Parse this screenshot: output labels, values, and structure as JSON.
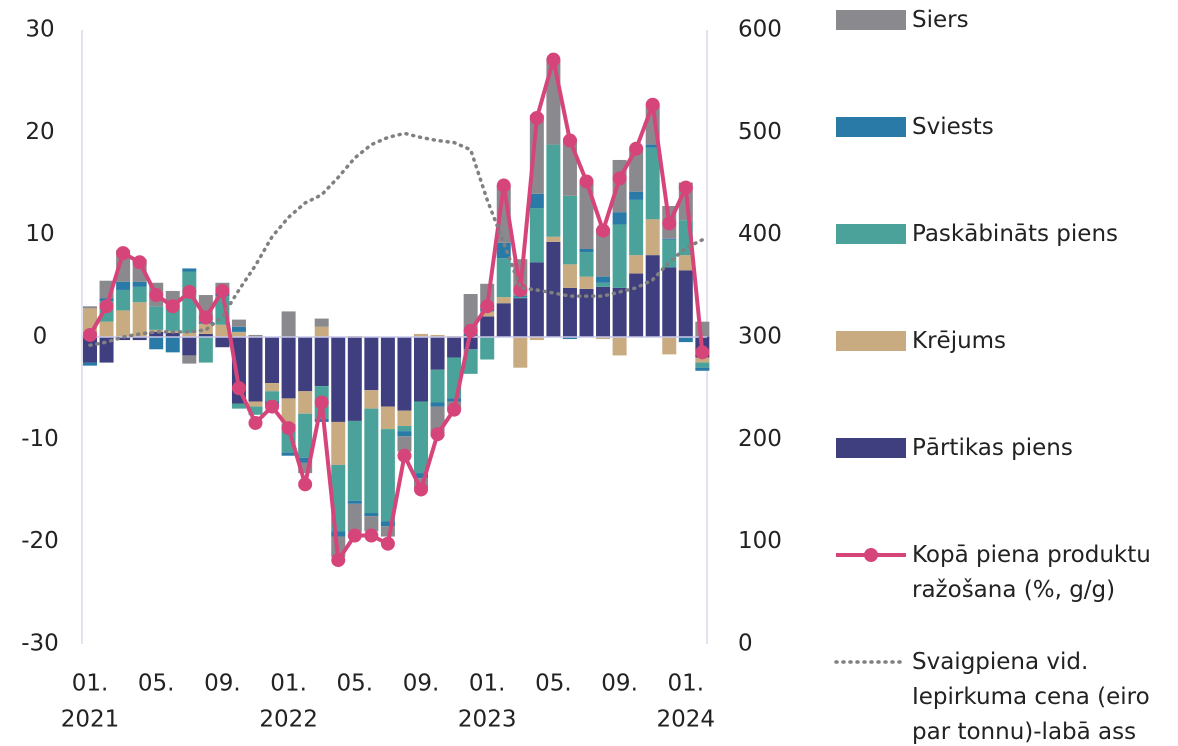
{
  "chart_data": {
    "type": "bar",
    "categories": [
      "01.",
      null,
      null,
      null,
      "05.",
      null,
      null,
      null,
      "09.",
      null,
      null,
      null,
      "01.",
      null,
      null,
      null,
      "05.",
      null,
      null,
      null,
      "09.",
      null,
      null,
      null,
      "01.",
      null,
      null,
      null,
      "05.",
      null,
      null,
      null,
      "09.",
      null,
      null,
      null,
      "01.",
      null
    ],
    "year_labels": [
      "2021",
      "2022",
      "2023",
      "2024"
    ],
    "ylim": [
      -30,
      30
    ],
    "yticks": [
      -30,
      -20,
      -10,
      0,
      10,
      20,
      30
    ],
    "y2lim": [
      0,
      600
    ],
    "y2ticks": [
      0,
      100,
      200,
      300,
      400,
      500,
      600
    ],
    "series": [
      {
        "name": "Pārtikas piens",
        "color": "#3f3f7f",
        "type": "bar",
        "values": [
          -2.5,
          -2.5,
          -0.3,
          -0.3,
          0.5,
          0.4,
          -1.8,
          0.3,
          -1.0,
          -6.5,
          -6.3,
          -4.5,
          -6.0,
          -5.3,
          -4.8,
          -8.3,
          -8.2,
          -5.2,
          -6.8,
          -7.2,
          -6.3,
          -3.2,
          -2.0,
          -1.2,
          2.0,
          3.3,
          3.8,
          7.3,
          9.3,
          4.8,
          4.7,
          4.9,
          4.8,
          6.2,
          8.0,
          6.8,
          6.5,
          -2.0
        ]
      },
      {
        "name": "Krējums",
        "color": "#c9ab82",
        "type": "bar",
        "values": [
          2.8,
          1.5,
          2.6,
          3.4,
          0.2,
          0.2,
          0.4,
          1.0,
          1.2,
          0.5,
          -0.5,
          -0.8,
          -2.5,
          -2.2,
          1.0,
          -4.2,
          0.1,
          -1.8,
          -2.2,
          -1.5,
          0.3,
          0.2,
          0.1,
          0.1,
          0.5,
          0.6,
          -3.0,
          -0.3,
          0.5,
          2.3,
          1.2,
          -0.2,
          -1.8,
          1.8,
          3.5,
          -1.7,
          1.5,
          -0.5
        ]
      },
      {
        "name": "Paskābināts piens",
        "color": "#4aa29a",
        "type": "bar",
        "values": [
          0.0,
          2.0,
          2.0,
          1.5,
          2.3,
          2.2,
          6.0,
          -2.5,
          2.8,
          -0.5,
          -0.8,
          -1.0,
          -2.8,
          -4.3,
          -3.2,
          -6.5,
          -7.8,
          -10.2,
          -9.0,
          -0.5,
          -7.0,
          -3.2,
          -4.0,
          -2.4,
          -2.2,
          3.8,
          0.1,
          5.3,
          9.0,
          6.7,
          2.4,
          0.4,
          6.2,
          5.4,
          7.0,
          2.7,
          3.4,
          -0.5
        ]
      },
      {
        "name": "Sviests",
        "color": "#2a7aa8",
        "type": "bar",
        "values": [
          -0.3,
          0.3,
          0.8,
          0.5,
          -1.2,
          -1.5,
          0.3,
          0.2,
          0.3,
          0.5,
          0.0,
          -0.3,
          -0.3,
          -0.5,
          -0.3,
          -0.5,
          -0.3,
          -0.3,
          -0.5,
          -0.5,
          -0.5,
          -0.4,
          -0.3,
          0.2,
          0.3,
          1.5,
          0.1,
          1.4,
          0.0,
          -0.2,
          0.3,
          0.6,
          1.2,
          0.8,
          0.3,
          0.1,
          -0.5,
          -0.3
        ]
      },
      {
        "name": "Siers",
        "color": "#8a8a8e",
        "type": "bar",
        "values": [
          0.2,
          1.7,
          3.1,
          2.2,
          2.3,
          1.7,
          -0.8,
          2.6,
          1.0,
          0.7,
          0.2,
          -0.2,
          2.5,
          -1.0,
          0.8,
          -2.0,
          -2.8,
          -1.5,
          -1.0,
          -1.5,
          -1.2,
          -2.9,
          -0.9,
          3.9,
          2.4,
          5.6,
          3.6,
          7.7,
          8.3,
          5.6,
          6.6,
          4.7,
          5.1,
          4.2,
          3.9,
          3.2,
          3.7,
          1.5
        ]
      },
      {
        "name": "Kopā piena produktu ražošana (%, g/g)",
        "color": "#d6457a",
        "type": "line",
        "values": [
          0.2,
          3.0,
          8.2,
          7.3,
          4.1,
          3.0,
          4.4,
          1.9,
          4.5,
          -5.0,
          -8.4,
          -6.8,
          -8.9,
          -14.4,
          -6.4,
          -21.8,
          -19.4,
          -19.4,
          -20.2,
          -11.6,
          -14.9,
          -9.5,
          -7.1,
          0.6,
          3.0,
          14.8,
          4.6,
          21.4,
          27.1,
          19.2,
          15.2,
          10.4,
          15.5,
          18.4,
          22.7,
          11.1,
          14.6,
          -1.5
        ]
      },
      {
        "name": "Svaigpiena vid. Iepirkuma cena (eiro par tonnu)-labā ass",
        "color": "#808080",
        "type": "dotted",
        "axis": "y2",
        "values": [
          292,
          295,
          300,
          303,
          305,
          305,
          305,
          307,
          320,
          346,
          370,
          398,
          417,
          431,
          439,
          456,
          475,
          488,
          495,
          499,
          495,
          492,
          490,
          483,
          434,
          392,
          348,
          346,
          343,
          340,
          340,
          340,
          344,
          348,
          356,
          373,
          387,
          395
        ]
      }
    ]
  }
}
